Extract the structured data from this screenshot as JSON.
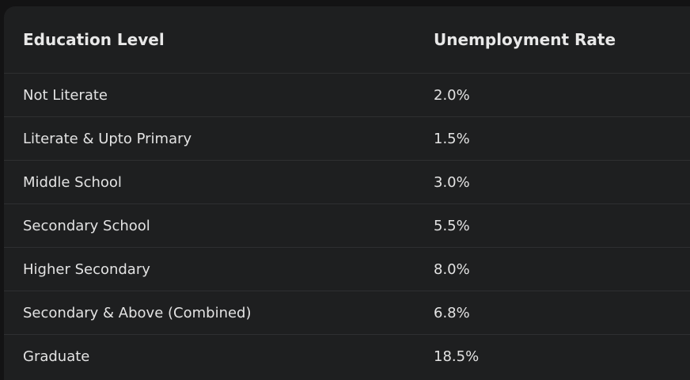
{
  "table": {
    "header": [
      "Education Level",
      "Unemployment Rate"
    ],
    "rows": [
      [
        "Not Literate",
        "2.0%"
      ],
      [
        "Literate & Upto Primary",
        "1.5%"
      ],
      [
        "Middle School",
        "3.0%"
      ],
      [
        "Secondary School",
        "5.5%"
      ],
      [
        "Higher Secondary",
        "8.0%"
      ],
      [
        "Secondary & Above (Combined)",
        "6.8%"
      ],
      [
        "Graduate",
        "18.5%"
      ]
    ]
  }
}
